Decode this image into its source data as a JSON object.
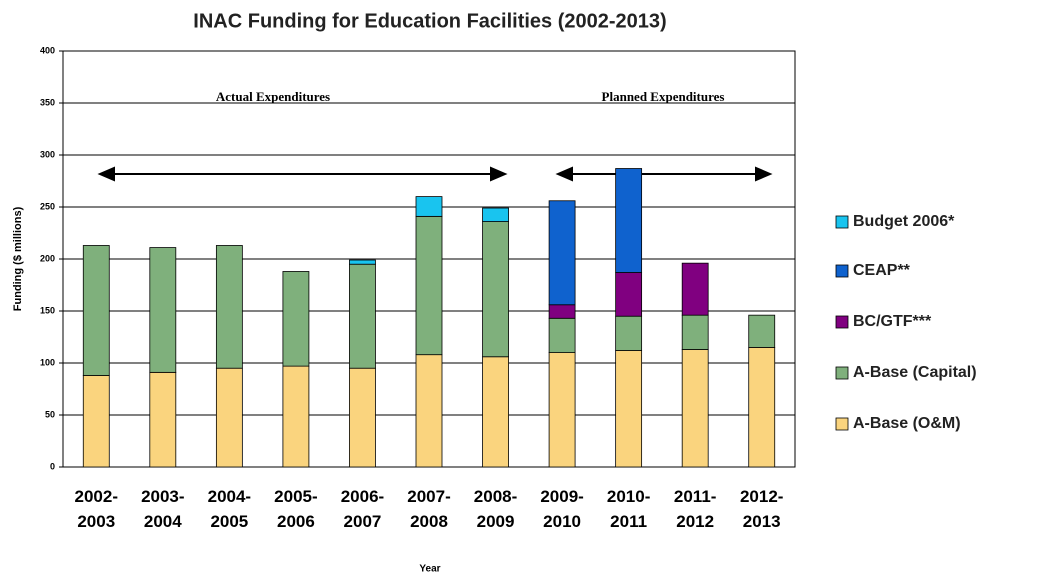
{
  "chart_data": {
    "type": "stacked_bar",
    "title": "INAC Funding for Education Facilities (2002-2013)",
    "y_label": "Funding ($ millions)",
    "x_label": "Year",
    "annotations": [
      "Actual Expenditures",
      "Planned Expenditures"
    ],
    "categories": [
      "2002-\n2003",
      "2003-\n2004",
      "2004-\n2005",
      "2005-\n2006",
      "2006-\n2007",
      "2007-\n2008",
      "2008-\n2009",
      "2009-\n2010",
      "2010-\n2011",
      "2011-\n2012",
      "2012-\n2013"
    ],
    "series": [
      {
        "name": "A-Base (O&M)",
        "color": "#fad47e",
        "values": [
          88,
          91,
          95,
          97,
          95,
          108,
          106,
          110,
          112,
          113,
          115
        ]
      },
      {
        "name": "A-Base (Capital)",
        "color": "#7fb07c",
        "values": [
          125,
          120,
          118,
          91,
          100,
          133,
          130,
          33,
          33,
          33,
          31
        ]
      },
      {
        "name": "BC/GTF***",
        "color": "#800080",
        "values": [
          null,
          null,
          null,
          null,
          null,
          null,
          null,
          13,
          42,
          50,
          null
        ]
      },
      {
        "name": "CEAP**",
        "color": "#0f62ce",
        "values": [
          null,
          null,
          null,
          null,
          null,
          null,
          null,
          100,
          100,
          null,
          null
        ]
      },
      {
        "name": "Budget 2006*",
        "color": "#19c4ef",
        "values": [
          null,
          null,
          null,
          null,
          4,
          19,
          13,
          null,
          null,
          null,
          null
        ]
      }
    ],
    "ylim": [
      0,
      400
    ],
    "yticks": [
      0,
      50,
      100,
      150,
      200,
      250,
      300,
      350,
      400
    ],
    "grid": true
  }
}
